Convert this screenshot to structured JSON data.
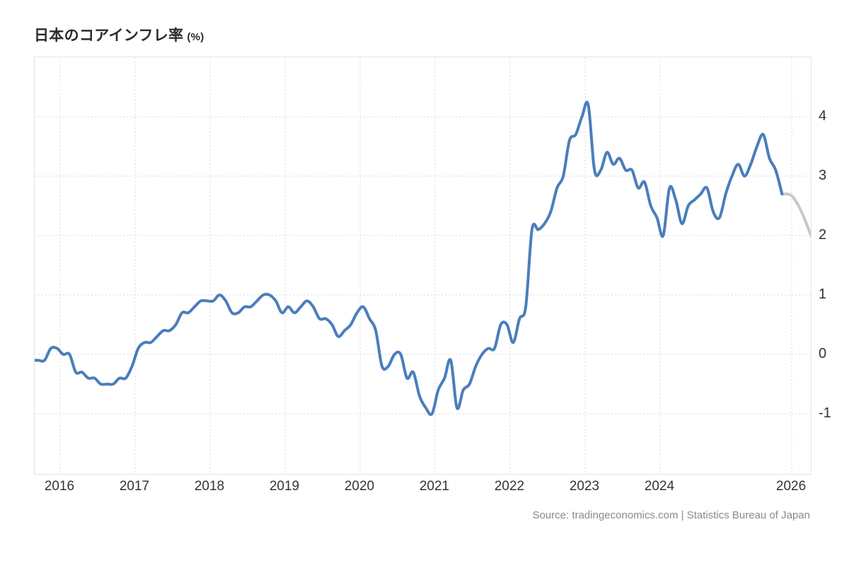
{
  "chart_data": {
    "type": "line",
    "title": "日本のコアインフレ率",
    "title_suffix": "(%)",
    "source": "Source: tradingeconomics.com | Statistics Bureau of Japan",
    "grid": "dotted",
    "legend": "none",
    "x_range": [
      2015.66,
      2026.02
    ],
    "y_range": [
      -2.0,
      5.0
    ],
    "y_ticks": [
      4,
      3,
      2,
      1,
      0,
      -1
    ],
    "x_ticks": [
      {
        "label": "2016",
        "t": 2016
      },
      {
        "label": "2017",
        "t": 2017
      },
      {
        "label": "2018",
        "t": 2018
      },
      {
        "label": "2019",
        "t": 2019
      },
      {
        "label": "2020",
        "t": 2020
      },
      {
        "label": "2021",
        "t": 2021
      },
      {
        "label": "2022",
        "t": 2022
      },
      {
        "label": "2023",
        "t": 2023
      },
      {
        "label": "2024",
        "t": 2024
      },
      {
        "label": "2026",
        "t": 2025.755
      }
    ],
    "series": [
      {
        "name": "actual",
        "color": "#4a7ebb",
        "start_year": 2015,
        "start_month": 8,
        "frequency": "monthly",
        "values": [
          -0.1,
          -0.1,
          -0.1,
          0.1,
          0.1,
          0.0,
          0.0,
          -0.3,
          -0.3,
          -0.4,
          -0.4,
          -0.5,
          -0.5,
          -0.5,
          -0.4,
          -0.4,
          -0.2,
          0.1,
          0.2,
          0.2,
          0.3,
          0.4,
          0.4,
          0.5,
          0.7,
          0.7,
          0.8,
          0.9,
          0.9,
          0.9,
          1.0,
          0.9,
          0.7,
          0.7,
          0.8,
          0.8,
          0.9,
          1.0,
          1.0,
          0.9,
          0.7,
          0.8,
          0.7,
          0.8,
          0.9,
          0.8,
          0.6,
          0.6,
          0.5,
          0.3,
          0.4,
          0.5,
          0.7,
          0.8,
          0.6,
          0.4,
          -0.2,
          -0.2,
          0.0,
          0.0,
          -0.4,
          -0.3,
          -0.7,
          -0.9,
          -1.0,
          -0.6,
          -0.4,
          -0.1,
          -0.9,
          -0.6,
          -0.5,
          -0.2,
          0.0,
          0.1,
          0.1,
          0.5,
          0.5,
          0.2,
          0.6,
          0.8,
          2.1,
          2.1,
          2.2,
          2.4,
          2.8,
          3.0,
          3.6,
          3.7,
          4.0,
          4.2,
          3.1,
          3.1,
          3.4,
          3.2,
          3.3,
          3.1,
          3.1,
          2.8,
          2.9,
          2.5,
          2.3,
          2.0,
          2.8,
          2.6,
          2.2,
          2.5,
          2.6,
          2.7,
          2.8,
          2.4,
          2.3,
          2.7,
          3.0,
          3.2,
          3.0,
          3.2,
          3.5,
          3.7,
          3.3,
          3.1,
          2.7
        ]
      },
      {
        "name": "forecast",
        "color": "#c9c9c9",
        "points": [
          {
            "t": 2025.625,
            "value": 2.7
          },
          {
            "t": 2025.755,
            "value": 2.67
          },
          {
            "t": 2025.878,
            "value": 2.42
          },
          {
            "t": 2026.012,
            "value": 2.0
          }
        ]
      }
    ]
  }
}
